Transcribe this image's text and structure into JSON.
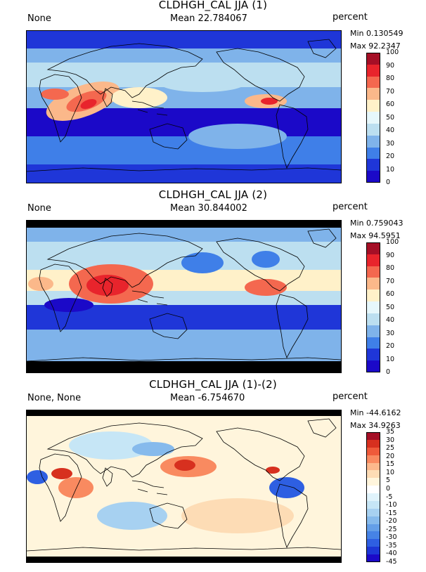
{
  "panels": [
    {
      "title": "CLDHGH_CAL JJA (1)",
      "left_label": "None",
      "mean": "Mean 22.784067",
      "units": "percent",
      "min": "Min 0.130549",
      "max": "Max 92.2347",
      "levels": [
        "100",
        "90",
        "80",
        "70",
        "60",
        "50",
        "40",
        "30",
        "20",
        "10",
        "0"
      ],
      "colors": [
        "#a50f26",
        "#e8242c",
        "#f4684f",
        "#fbb88a",
        "#fff1c9",
        "#e6f7fb",
        "#bcdff0",
        "#7fb3ea",
        "#3f7fe8",
        "#1f36d8",
        "#1b09c8"
      ],
      "kind": "mean1"
    },
    {
      "title": "CLDHGH_CAL JJA (2)",
      "left_label": "None",
      "mean": "Mean 30.844002",
      "units": "percent",
      "min": "Min 0.759043",
      "max": "Max 94.5951",
      "levels": [
        "100",
        "90",
        "80",
        "70",
        "60",
        "50",
        "40",
        "30",
        "20",
        "10",
        "0"
      ],
      "colors": [
        "#a50f26",
        "#e8242c",
        "#f4684f",
        "#fbb88a",
        "#fff1c9",
        "#e6f7fb",
        "#bcdff0",
        "#7fb3ea",
        "#3f7fe8",
        "#1f36d8",
        "#1b09c8"
      ],
      "kind": "mean2"
    },
    {
      "title": "CLDHGH_CAL JJA (1)-(2)",
      "left_label": "None, None",
      "mean": "Mean -6.754670",
      "units": "percent",
      "min": "Min -44.6162",
      "max": "Max 34.9263",
      "levels": [
        "35",
        "30",
        "25",
        "20",
        "15",
        "10",
        "5",
        "0",
        "-5",
        "-10",
        "-15",
        "-20",
        "-25",
        "-30",
        "-35",
        "-40",
        "-45"
      ],
      "colors": [
        "#a50f26",
        "#d7301f",
        "#ef5a3a",
        "#f98a60",
        "#fcb88c",
        "#fddcb5",
        "#fff5dc",
        "#ffffff",
        "#e0f3fb",
        "#c6e6f6",
        "#a7d1f1",
        "#86baec",
        "#649fe8",
        "#4683e6",
        "#2e5fe2",
        "#1d37d6",
        "#1b09c8"
      ],
      "kind": "diff"
    }
  ]
}
